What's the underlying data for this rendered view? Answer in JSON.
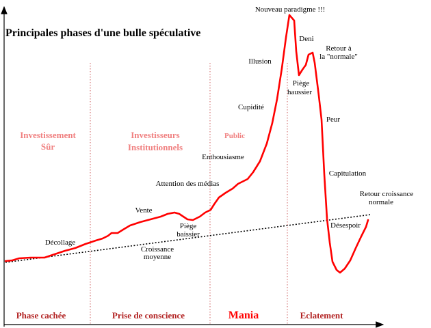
{
  "title": "Principales phases d'une bulle spéculative",
  "colors": {
    "curve": "#ff0000",
    "phase_label": "#b22222",
    "investor_label": "#f08080",
    "axis": "#000000",
    "divider": "#cd5c5c",
    "trend": "#000000"
  },
  "investors": {
    "safe": [
      "Investissement",
      "Sûr"
    ],
    "institutional": [
      "Investisseurs",
      "Institutionnels"
    ],
    "public": "Public"
  },
  "phases": {
    "hidden": "Phase cachée",
    "awareness": "Prise de conscience",
    "mania": "Mania",
    "burst": "Eclatement"
  },
  "annotations": {
    "takeoff": "Décollage",
    "sell": "Vente",
    "bear_trap": [
      "Piège",
      "baissier"
    ],
    "media": "Attention des médias",
    "enthusiasm": "Enthousiasme",
    "greed": "Cupidité",
    "illusion": "Illusion",
    "new_paradigm": "Nouveau paradigme !!!",
    "denial": "Deni",
    "bull_trap": [
      "Piège",
      "haussier"
    ],
    "return_normal": [
      "Retour  à",
      "la \"normale\""
    ],
    "fear": "Peur",
    "capitulation": "Capitulation",
    "despair": "Désespoir",
    "return_growth": [
      "Retour croissance",
      "normale"
    ],
    "average_growth": [
      "Croissance",
      "moyenne"
    ]
  }
}
